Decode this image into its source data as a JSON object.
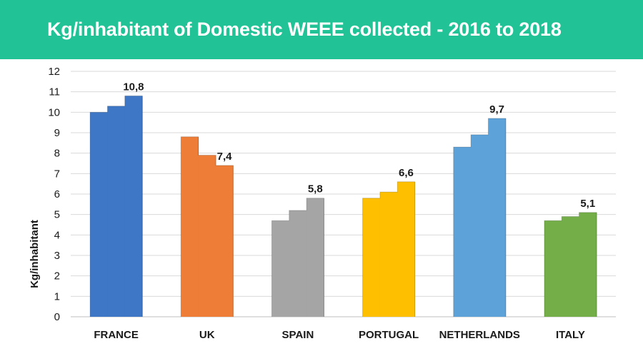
{
  "header": {
    "title": "Kg/inhabitant of Domestic WEEE collected - 2016 to 2018"
  },
  "chart_data": {
    "type": "bar",
    "title": "Kg/inhabitant of Domestic WEEE collected - 2016 to 2018",
    "xlabel": "",
    "ylabel": "Kg/inhabitant",
    "ylim": [
      0,
      12
    ],
    "yticks": [
      "0",
      "1",
      "2",
      "3",
      "4",
      "5",
      "6",
      "7",
      "8",
      "9",
      "10",
      "11",
      "12"
    ],
    "grid": true,
    "legend": "none",
    "categories": [
      "FRANCE",
      "UK",
      "SPAIN",
      "PORTUGAL",
      "NETHERLANDS",
      "ITALY"
    ],
    "groups": [
      {
        "category": "FRANCE",
        "color": "#3d77c5",
        "values": [
          10.0,
          10.3,
          10.8
        ],
        "label": "10,8"
      },
      {
        "category": "UK",
        "color": "#ee7d38",
        "values": [
          8.8,
          7.9,
          7.4
        ],
        "label": "7,4"
      },
      {
        "category": "SPAIN",
        "color": "#a5a5a5",
        "values": [
          4.7,
          5.2,
          5.8
        ],
        "label": "5,8"
      },
      {
        "category": "PORTUGAL",
        "color": "#fdbf00",
        "values": [
          5.8,
          6.1,
          6.6
        ],
        "label": "6,6"
      },
      {
        "category": "NETHERLANDS",
        "color": "#5da3da",
        "values": [
          8.3,
          8.9,
          9.7
        ],
        "label": "9,7"
      },
      {
        "category": "ITALY",
        "color": "#74ae48",
        "values": [
          4.7,
          4.9,
          5.1
        ],
        "label": "5,1"
      }
    ]
  }
}
